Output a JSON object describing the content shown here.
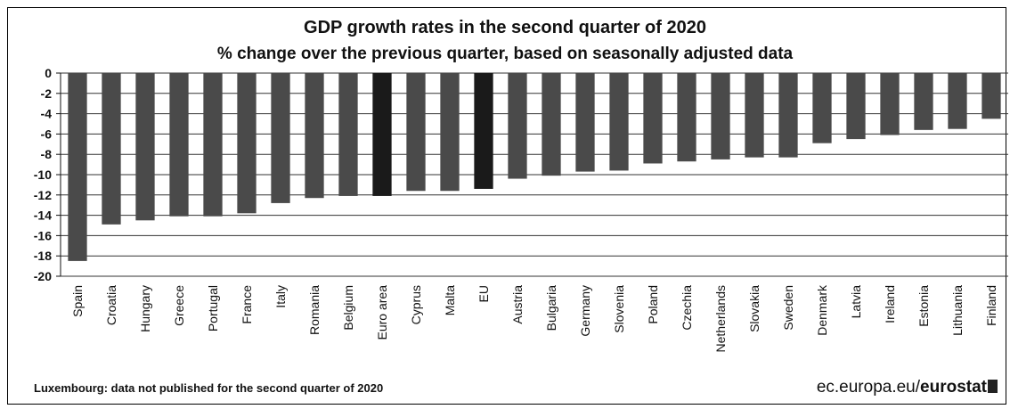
{
  "chart_data": {
    "type": "bar",
    "title": "GDP growth rates in the second quarter of 2020",
    "subtitle": "% change over the previous quarter, based on seasonally adjusted data",
    "categories": [
      "Spain",
      "Croatia",
      "Hungary",
      "Greece",
      "Portugal",
      "France",
      "Italy",
      "Romania",
      "Belgium",
      "Euro area",
      "Cyprus",
      "Malta",
      "EU",
      "Austria",
      "Bulgaria",
      "Germany",
      "Slovenia",
      "Poland",
      "Czechia",
      "Netherlands",
      "Slovakia",
      "Sweden",
      "Denmark",
      "Latvia",
      "Ireland",
      "Estonia",
      "Lithuania",
      "Finland"
    ],
    "values": [
      -18.5,
      -14.9,
      -14.5,
      -14.1,
      -14.1,
      -13.8,
      -12.8,
      -12.3,
      -12.1,
      -12.1,
      -11.6,
      -11.6,
      -11.4,
      -10.4,
      -10.1,
      -9.7,
      -9.6,
      -8.9,
      -8.7,
      -8.5,
      -8.3,
      -8.3,
      -6.9,
      -6.5,
      -6.1,
      -5.6,
      -5.5,
      -4.5
    ],
    "highlighted": [
      "Euro area",
      "EU"
    ],
    "ylim": [
      -20,
      0
    ],
    "yticks": [
      0,
      -2,
      -4,
      -6,
      -8,
      -10,
      -12,
      -14,
      -16,
      -18,
      -20
    ],
    "grid": true,
    "colors": {
      "bar": "#4a4a4a",
      "highlight": "#1a1a1a",
      "grid": "#333333"
    }
  },
  "footnote": "Luxembourg: data not published for the second quarter of 2020",
  "brand": {
    "prefix": "ec.europa.eu/",
    "name": "eurostat"
  }
}
